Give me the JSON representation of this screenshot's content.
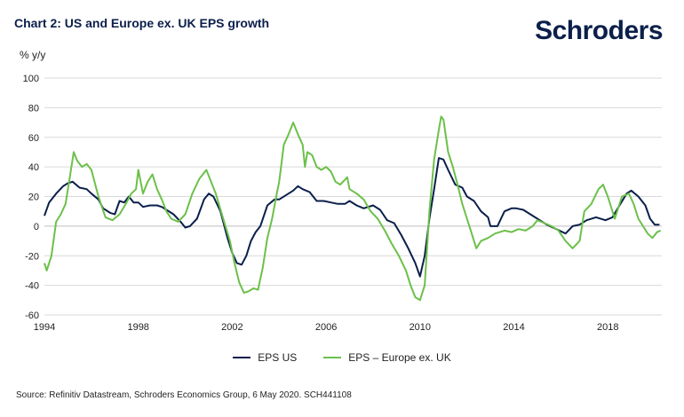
{
  "header": {
    "title": "Chart 2: US and Europe ex. UK EPS growth",
    "logo_text": "Schroders"
  },
  "footer": {
    "source": "Source: Refinitiv Datastream, Schroders Economics Group, 6 May 2020. SCH441108"
  },
  "colors": {
    "us": "#0b1f4b",
    "europe": "#6cc04a"
  },
  "chart_data": {
    "type": "line",
    "title": "Chart 2: US and Europe ex. UK EPS growth",
    "ylabel": "% y/y",
    "xlabel": "",
    "ylim": [
      -60,
      100
    ],
    "xlim": [
      1994,
      2020.3
    ],
    "y_ticks": [
      100,
      80,
      60,
      40,
      20,
      0,
      -20,
      -40,
      -60
    ],
    "x_ticks": [
      1994,
      1998,
      2002,
      2006,
      2010,
      2014,
      2018
    ],
    "grid": "horizontal",
    "legend_position": "bottom",
    "series": [
      {
        "name": "EPS US",
        "color": "#0b1f4b",
        "points": [
          [
            1994.0,
            7
          ],
          [
            1994.2,
            16
          ],
          [
            1994.5,
            22
          ],
          [
            1994.8,
            27
          ],
          [
            1995.0,
            29
          ],
          [
            1995.2,
            30
          ],
          [
            1995.5,
            26
          ],
          [
            1995.8,
            25
          ],
          [
            1996.0,
            22
          ],
          [
            1996.3,
            18
          ],
          [
            1996.5,
            12
          ],
          [
            1996.8,
            9
          ],
          [
            1997.0,
            8
          ],
          [
            1997.2,
            17
          ],
          [
            1997.4,
            16
          ],
          [
            1997.6,
            20
          ],
          [
            1997.8,
            16
          ],
          [
            1998.0,
            16
          ],
          [
            1998.2,
            13
          ],
          [
            1998.5,
            14
          ],
          [
            1998.8,
            14
          ],
          [
            1999.0,
            13
          ],
          [
            1999.2,
            11
          ],
          [
            1999.5,
            8
          ],
          [
            1999.8,
            3
          ],
          [
            2000.0,
            -1
          ],
          [
            2000.2,
            0
          ],
          [
            2000.5,
            5
          ],
          [
            2000.8,
            18
          ],
          [
            2001.0,
            22
          ],
          [
            2001.2,
            20
          ],
          [
            2001.5,
            10
          ],
          [
            2001.8,
            -8
          ],
          [
            2002.0,
            -18
          ],
          [
            2002.2,
            -25
          ],
          [
            2002.4,
            -26
          ],
          [
            2002.6,
            -20
          ],
          [
            2002.8,
            -10
          ],
          [
            2003.0,
            -4
          ],
          [
            2003.2,
            0
          ],
          [
            2003.5,
            14
          ],
          [
            2003.8,
            18
          ],
          [
            2004.0,
            18
          ],
          [
            2004.3,
            21
          ],
          [
            2004.6,
            24
          ],
          [
            2004.8,
            27
          ],
          [
            2005.0,
            25
          ],
          [
            2005.3,
            23
          ],
          [
            2005.6,
            17
          ],
          [
            2005.9,
            17
          ],
          [
            2006.2,
            16
          ],
          [
            2006.5,
            15
          ],
          [
            2006.8,
            15
          ],
          [
            2007.0,
            17
          ],
          [
            2007.3,
            14
          ],
          [
            2007.6,
            12
          ],
          [
            2008.0,
            14
          ],
          [
            2008.3,
            11
          ],
          [
            2008.6,
            4
          ],
          [
            2008.9,
            2
          ],
          [
            2009.2,
            -6
          ],
          [
            2009.5,
            -15
          ],
          [
            2009.8,
            -25
          ],
          [
            2010.0,
            -34
          ],
          [
            2010.2,
            -20
          ],
          [
            2010.4,
            5
          ],
          [
            2010.6,
            25
          ],
          [
            2010.8,
            46
          ],
          [
            2011.0,
            45
          ],
          [
            2011.2,
            38
          ],
          [
            2011.5,
            28
          ],
          [
            2011.8,
            26
          ],
          [
            2012.0,
            20
          ],
          [
            2012.3,
            17
          ],
          [
            2012.6,
            10
          ],
          [
            2012.9,
            6
          ],
          [
            2013.0,
            0
          ],
          [
            2013.3,
            0
          ],
          [
            2013.6,
            10
          ],
          [
            2013.9,
            12
          ],
          [
            2014.1,
            12
          ],
          [
            2014.4,
            11
          ],
          [
            2014.7,
            8
          ],
          [
            2015.0,
            5
          ],
          [
            2015.4,
            1
          ],
          [
            2015.8,
            -2
          ],
          [
            2016.2,
            -5
          ],
          [
            2016.5,
            0
          ],
          [
            2016.8,
            1
          ],
          [
            2017.1,
            4
          ],
          [
            2017.5,
            6
          ],
          [
            2017.9,
            4
          ],
          [
            2018.2,
            6
          ],
          [
            2018.5,
            14
          ],
          [
            2018.8,
            22
          ],
          [
            2019.0,
            24
          ],
          [
            2019.3,
            20
          ],
          [
            2019.6,
            14
          ],
          [
            2019.8,
            5
          ],
          [
            2020.0,
            1
          ],
          [
            2020.2,
            1
          ]
        ]
      },
      {
        "name": "EPS – Europe ex. UK",
        "color": "#6cc04a",
        "points": [
          [
            1994.0,
            -25
          ],
          [
            1994.1,
            -30
          ],
          [
            1994.3,
            -20
          ],
          [
            1994.5,
            3
          ],
          [
            1994.7,
            8
          ],
          [
            1994.9,
            15
          ],
          [
            1995.1,
            35
          ],
          [
            1995.25,
            50
          ],
          [
            1995.4,
            44
          ],
          [
            1995.6,
            40
          ],
          [
            1995.8,
            42
          ],
          [
            1996.0,
            38
          ],
          [
            1996.3,
            20
          ],
          [
            1996.6,
            6
          ],
          [
            1996.9,
            4
          ],
          [
            1997.2,
            8
          ],
          [
            1997.5,
            16
          ],
          [
            1997.7,
            22
          ],
          [
            1997.9,
            25
          ],
          [
            1998.0,
            38
          ],
          [
            1998.2,
            22
          ],
          [
            1998.4,
            30
          ],
          [
            1998.6,
            35
          ],
          [
            1998.8,
            25
          ],
          [
            1999.0,
            18
          ],
          [
            1999.2,
            10
          ],
          [
            1999.4,
            5
          ],
          [
            1999.7,
            3
          ],
          [
            2000.0,
            8
          ],
          [
            2000.3,
            22
          ],
          [
            2000.6,
            32
          ],
          [
            2000.9,
            38
          ],
          [
            2001.1,
            30
          ],
          [
            2001.3,
            22
          ],
          [
            2001.6,
            6
          ],
          [
            2001.9,
            -10
          ],
          [
            2002.1,
            -25
          ],
          [
            2002.3,
            -38
          ],
          [
            2002.5,
            -45
          ],
          [
            2002.7,
            -44
          ],
          [
            2002.9,
            -42
          ],
          [
            2003.1,
            -43
          ],
          [
            2003.3,
            -28
          ],
          [
            2003.5,
            -8
          ],
          [
            2003.7,
            5
          ],
          [
            2003.9,
            22
          ],
          [
            2004.0,
            30
          ],
          [
            2004.2,
            55
          ],
          [
            2004.4,
            62
          ],
          [
            2004.6,
            70
          ],
          [
            2004.8,
            62
          ],
          [
            2005.0,
            55
          ],
          [
            2005.1,
            40
          ],
          [
            2005.2,
            50
          ],
          [
            2005.4,
            48
          ],
          [
            2005.6,
            40
          ],
          [
            2005.8,
            38
          ],
          [
            2006.0,
            40
          ],
          [
            2006.2,
            37
          ],
          [
            2006.4,
            30
          ],
          [
            2006.6,
            28
          ],
          [
            2006.9,
            33
          ],
          [
            2007.0,
            25
          ],
          [
            2007.3,
            22
          ],
          [
            2007.6,
            18
          ],
          [
            2007.9,
            10
          ],
          [
            2008.2,
            5
          ],
          [
            2008.5,
            -3
          ],
          [
            2008.8,
            -12
          ],
          [
            2009.1,
            -20
          ],
          [
            2009.4,
            -30
          ],
          [
            2009.6,
            -40
          ],
          [
            2009.8,
            -48
          ],
          [
            2010.0,
            -50
          ],
          [
            2010.2,
            -40
          ],
          [
            2010.4,
            10
          ],
          [
            2010.6,
            45
          ],
          [
            2010.8,
            65
          ],
          [
            2010.9,
            74
          ],
          [
            2011.0,
            72
          ],
          [
            2011.2,
            50
          ],
          [
            2011.4,
            40
          ],
          [
            2011.6,
            28
          ],
          [
            2011.8,
            15
          ],
          [
            2012.0,
            5
          ],
          [
            2012.2,
            -5
          ],
          [
            2012.4,
            -15
          ],
          [
            2012.6,
            -10
          ],
          [
            2012.9,
            -8
          ],
          [
            2013.2,
            -5
          ],
          [
            2013.6,
            -3
          ],
          [
            2013.9,
            -4
          ],
          [
            2014.2,
            -2
          ],
          [
            2014.5,
            -3
          ],
          [
            2014.8,
            0
          ],
          [
            2015.0,
            4
          ],
          [
            2015.3,
            2
          ],
          [
            2015.6,
            0
          ],
          [
            2015.9,
            -3
          ],
          [
            2016.2,
            -10
          ],
          [
            2016.5,
            -15
          ],
          [
            2016.8,
            -10
          ],
          [
            2017.0,
            10
          ],
          [
            2017.3,
            15
          ],
          [
            2017.6,
            25
          ],
          [
            2017.8,
            28
          ],
          [
            2018.0,
            20
          ],
          [
            2018.3,
            5
          ],
          [
            2018.6,
            20
          ],
          [
            2018.9,
            22
          ],
          [
            2019.1,
            15
          ],
          [
            2019.3,
            5
          ],
          [
            2019.5,
            0
          ],
          [
            2019.7,
            -5
          ],
          [
            2019.9,
            -8
          ],
          [
            2020.1,
            -4
          ],
          [
            2020.25,
            -3
          ]
        ]
      }
    ]
  }
}
